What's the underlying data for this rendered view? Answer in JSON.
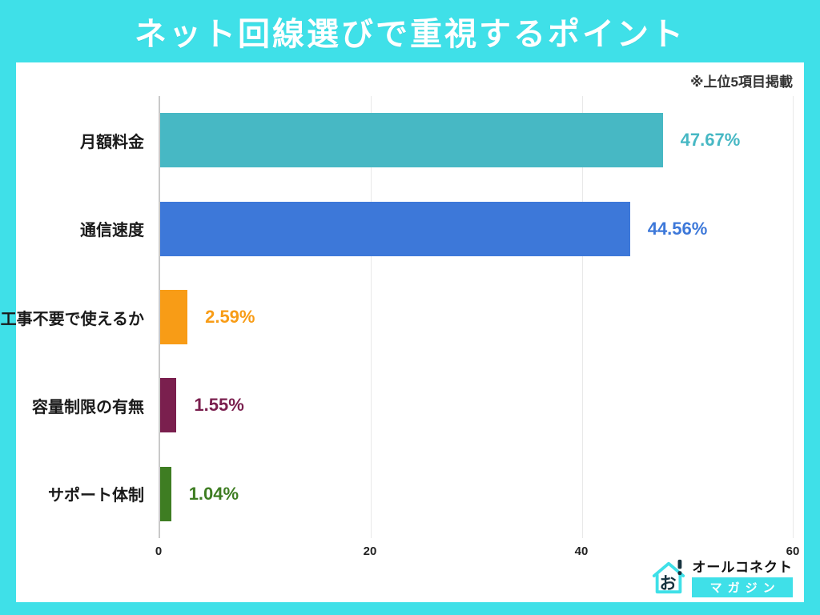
{
  "header": {
    "title": "ネット回線選びで重視するポイント"
  },
  "note": "※上位5項目掲載",
  "chart_data": {
    "type": "bar",
    "orientation": "horizontal",
    "title": "ネット回線選びで重視するポイント",
    "categories": [
      "月額料金",
      "通信速度",
      "工事不要で使えるか",
      "容量制限の有無",
      "サポート体制"
    ],
    "values": [
      47.67,
      44.56,
      2.59,
      1.55,
      1.04
    ],
    "value_labels": [
      "47.67%",
      "44.56%",
      "2.59%",
      "1.55%",
      "1.04%"
    ],
    "bar_colors": [
      "#47B8C4",
      "#3D78D9",
      "#F89C16",
      "#7A1F4E",
      "#3E7D22"
    ],
    "xlabel": "",
    "ylabel": "",
    "xlim": [
      0,
      60
    ],
    "x_ticks": [
      0,
      20,
      40,
      60
    ],
    "grid": true,
    "legend": false
  },
  "colors": {
    "frame": "#3FE0E8",
    "plot_background": "#ffffff",
    "axis_line": "#c9c9c9",
    "gridline": "#e9e9e9",
    "note_text": "#333333",
    "category_text": "#1a1a1a",
    "tick_text": "#222222"
  },
  "footer_logo": {
    "brand": "オールコネクト",
    "sub": "マガジン",
    "icon_char": "お",
    "icon_mark": "!"
  }
}
